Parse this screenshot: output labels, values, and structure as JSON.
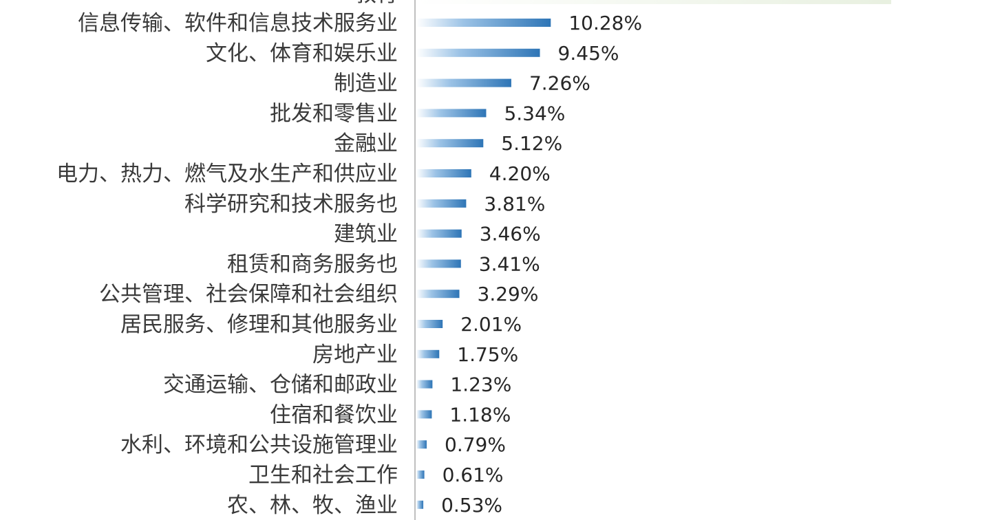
{
  "chart_data": {
    "type": "bar",
    "orientation": "horizontal",
    "title": "",
    "xlabel": "",
    "ylabel": "",
    "categories": [
      "信息传输、软件和信息技术服务业",
      "文化、体育和娱乐业",
      "制造业",
      "批发和零售业",
      "金融业",
      "电力、热力、燃气及水生产和供应业",
      "科学研究和技术服务也",
      "建筑业",
      "租赁和商务服务也",
      "公共管理、社会保障和社会组织",
      "居民服务、修理和其他服务业",
      "房地产业",
      "交通运输、仓储和邮政业",
      "住宿和餐饮业",
      "水利、环境和公共设施管理业",
      "卫生和社会工作",
      "农、林、牧、渔业"
    ],
    "values": [
      10.28,
      9.45,
      7.26,
      5.34,
      5.12,
      4.2,
      3.81,
      3.46,
      3.41,
      3.29,
      2.01,
      1.75,
      1.23,
      1.18,
      0.79,
      0.61,
      0.53
    ],
    "value_labels": [
      "10.28%",
      "9.45%",
      "7.26%",
      "5.34%",
      "5.12%",
      "4.20%",
      "3.81%",
      "3.46%",
      "3.41%",
      "3.29%",
      "2.01%",
      "1.75%",
      "1.23%",
      "1.18%",
      "0.79%",
      "0.61%",
      "0.53%"
    ],
    "unit": "%",
    "grid": false,
    "legend": "none",
    "bar_color": "#2e75b6",
    "bar_color_light": "#dbe9f6",
    "axis_color": "#bfbfbf",
    "partial_top_row": {
      "label": "教育",
      "note": "cut off at top edge"
    }
  }
}
